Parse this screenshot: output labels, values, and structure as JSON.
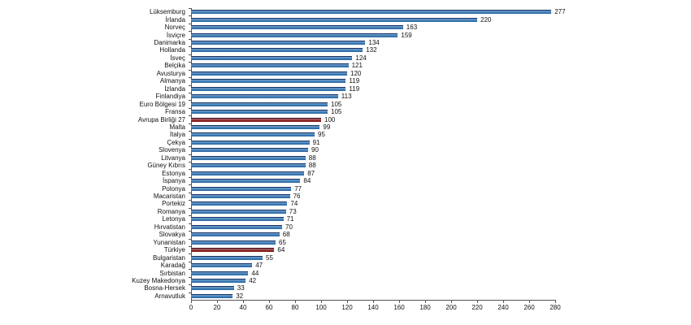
{
  "chart_data": {
    "type": "bar",
    "orientation": "horizontal",
    "title": "",
    "xlabel": "",
    "ylabel": "",
    "grid": false,
    "legend": null,
    "value_labels_shown": true,
    "xlim": [
      0,
      280
    ],
    "xticks": [
      0,
      20,
      40,
      60,
      80,
      100,
      120,
      140,
      160,
      180,
      200,
      220,
      240,
      260,
      280
    ],
    "categories": [
      "Lüksemburg",
      "İrlanda",
      "Norveç",
      "İsviçre",
      "Danimarka",
      "Hollanda",
      "İsveç",
      "Belçika",
      "Avusturya",
      "Almanya",
      "İzlanda",
      "Finlandiya",
      "Euro Bölgesi 19",
      "Fransa",
      "Avrupa Birliği 27",
      "Malta",
      "İtalya",
      "Çekya",
      "Slovenya",
      "Litvanya",
      "Güney Kıbrıs",
      "Estonya",
      "İspanya",
      "Polonya",
      "Macaristan",
      "Portekiz",
      "Romanya",
      "Letonya",
      "Hırvatistan",
      "Slovakya",
      "Yunanistan",
      "Türkiye",
      "Bulgaristan",
      "Karadağ",
      "Sırbistan",
      "Kuzey Makedonya",
      "Bosna-Hersek",
      "Arnavutluk"
    ],
    "values": [
      277,
      220,
      163,
      159,
      134,
      132,
      124,
      121,
      120,
      119,
      119,
      113,
      105,
      105,
      100,
      99,
      95,
      91,
      90,
      88,
      88,
      87,
      84,
      77,
      76,
      74,
      73,
      71,
      70,
      68,
      65,
      64,
      55,
      47,
      44,
      42,
      33,
      32
    ],
    "highlighted": [
      "Avrupa Birliği 27",
      "Türkiye"
    ],
    "colors": {
      "default_bar": "#2e74b5",
      "highlight_bar": "#8b1717",
      "axis": "#555555",
      "text": "#111111",
      "background": "#ffffff"
    }
  }
}
